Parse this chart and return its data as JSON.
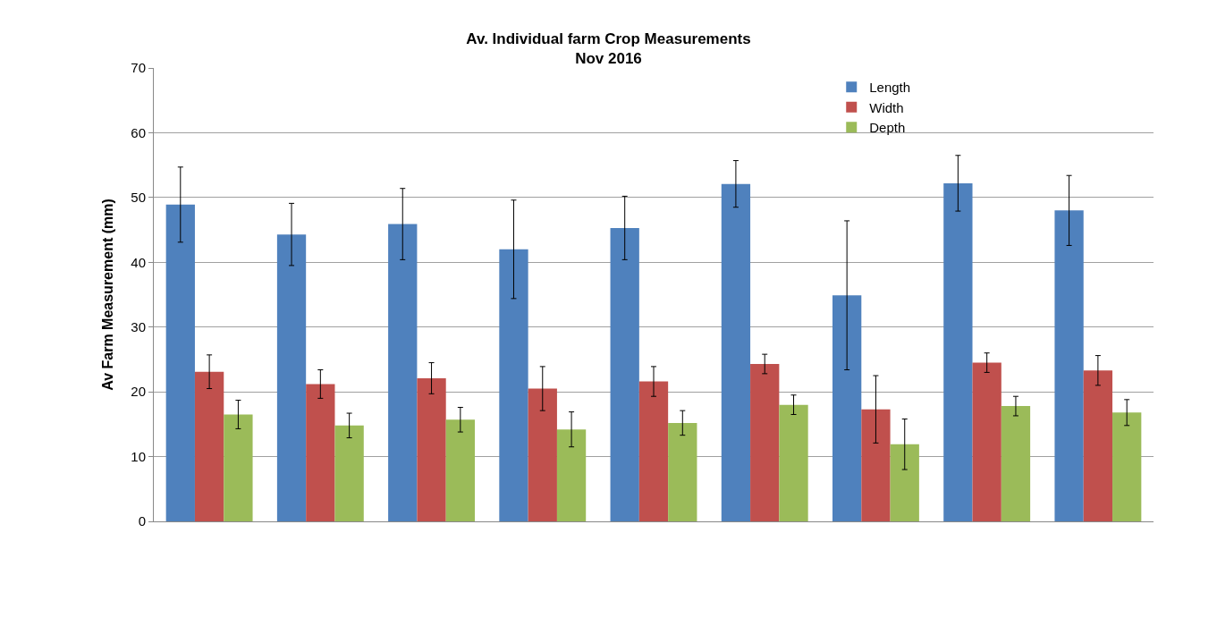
{
  "chart_data": {
    "type": "bar",
    "title": "Av. Individual farm Crop Measurements\nNov 2016",
    "ylabel": "Av Farm Measurement (mm)",
    "categories": [
      null,
      null,
      null,
      null,
      null,
      null,
      null,
      null,
      null
    ],
    "series": [
      {
        "name": "Length",
        "color": "#4f81bd",
        "values": [
          48.9,
          44.3,
          45.9,
          42.0,
          45.3,
          52.1,
          34.9,
          52.2,
          48.0
        ],
        "errors": [
          5.8,
          4.8,
          5.5,
          7.6,
          4.9,
          3.6,
          11.5,
          4.3,
          5.4
        ]
      },
      {
        "name": "Width",
        "color": "#c0504d",
        "values": [
          23.1,
          21.2,
          22.1,
          20.5,
          21.6,
          24.3,
          17.3,
          24.5,
          23.3
        ],
        "errors": [
          2.6,
          2.2,
          2.4,
          3.4,
          2.3,
          1.5,
          5.2,
          1.5,
          2.3
        ]
      },
      {
        "name": "Depth",
        "color": "#9bbb59",
        "values": [
          16.5,
          14.8,
          15.7,
          14.2,
          15.2,
          18.0,
          11.9,
          17.8,
          16.8
        ],
        "errors": [
          2.2,
          1.9,
          1.9,
          2.7,
          1.9,
          1.5,
          3.9,
          1.5,
          2.0
        ]
      }
    ],
    "ylim": [
      0,
      70
    ],
    "yticks": [
      0,
      10,
      20,
      30,
      40,
      50,
      60,
      70
    ],
    "grid": "y",
    "legend": "top right"
  }
}
